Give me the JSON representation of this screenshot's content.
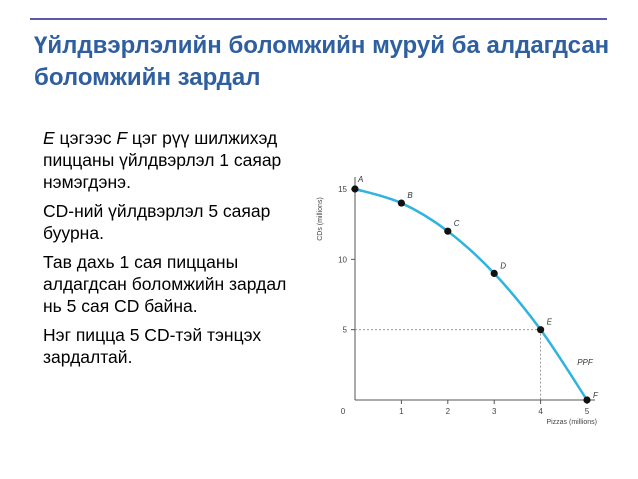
{
  "slide": {
    "title": "Үйлдвэрлэлийн боломжийн муруй ба алдагдсан боломжийн зардал",
    "paragraphs": [
      {
        "p1_italic_e": "E",
        "p1_mid": " цэгээс ",
        "p1_italic_f": "F",
        "p1_rest": " цэг рүү шилжихэд пиццаны үйлдвэрлэл 1 саяар нэмэгдэнэ."
      },
      {
        "text": "CD-ний үйлдвэрлэл 5 саяар буурна."
      },
      {
        "text": "Тав дахь 1 сая пиццаны алдагдсан боломжийн зардал нь 5 сая CD байна."
      },
      {
        "text": "Нэг пицца 5 CD-тэй тэнцэх зардалтай."
      }
    ]
  },
  "chart_data": {
    "type": "line",
    "xlabel": "Pizzas (millions)",
    "ylabel": "CDs (millions)",
    "xlim": [
      0,
      5
    ],
    "ylim": [
      0,
      15
    ],
    "x_ticks": [
      "0",
      "1",
      "2",
      "3",
      "4",
      "5"
    ],
    "y_ticks": [
      "0",
      "5",
      "10",
      "15"
    ],
    "grid": false,
    "series": [
      {
        "name": "PPF",
        "points": [
          {
            "label": "A",
            "x": 0,
            "y": 15
          },
          {
            "label": "B",
            "x": 1,
            "y": 14
          },
          {
            "label": "C",
            "x": 2,
            "y": 12
          },
          {
            "label": "D",
            "x": 3,
            "y": 9
          },
          {
            "label": "E",
            "x": 4,
            "y": 5
          },
          {
            "label": "F",
            "x": 5,
            "y": 0
          }
        ]
      }
    ],
    "highlight": {
      "x": 4,
      "y": 5
    },
    "colors": {
      "curve": "#2fb3e0",
      "points": "#111111",
      "axis": "#555555",
      "guide": "#888888"
    }
  }
}
